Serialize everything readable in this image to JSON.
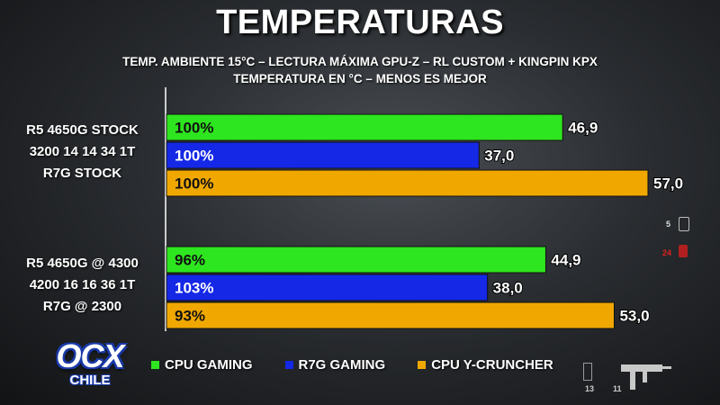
{
  "chart_data": {
    "type": "bar",
    "orientation": "horizontal",
    "title": "TEMPERATURAS",
    "subtitle": [
      "TEMP. AMBIENTE 15°C – LECTURA MÁXIMA GPU-Z – RL CUSTOM + KINGPIN KPX",
      "TEMPERATURA EN °C – MENOS ES MEJOR"
    ],
    "xlim": [
      0,
      60
    ],
    "grid": false,
    "legend_position": "bottom",
    "groups": [
      {
        "label_lines": [
          "R5 4650G STOCK",
          "3200 14 14 34 1T",
          "R7G STOCK"
        ]
      },
      {
        "label_lines": [
          "R5 4650G @ 4300",
          "4200 16 16 36 1T",
          "R7G @ 2300"
        ]
      }
    ],
    "series": [
      {
        "name": "CPU GAMING",
        "color": "#2ee61f",
        "values": [
          46.9,
          44.9
        ],
        "value_labels": [
          "46,9",
          "44,9"
        ],
        "inner_labels": [
          "100%",
          "96%"
        ]
      },
      {
        "name": "R7G GAMING",
        "color": "#1428e6",
        "values": [
          37.0,
          38.0
        ],
        "value_labels": [
          "37,0",
          "38,0"
        ],
        "inner_labels": [
          "100%",
          "103%"
        ]
      },
      {
        "name": "CPU Y-CRUNCHER",
        "color": "#f0a800",
        "values": [
          57.0,
          53.0
        ],
        "value_labels": [
          "57,0",
          "53,0"
        ],
        "inner_labels": [
          "100%",
          "93%"
        ]
      }
    ]
  },
  "logo": {
    "main": "OCX",
    "sub": "CHILE"
  },
  "hud": {
    "ammo_a": "5",
    "ammo_b": "24",
    "clip": "13",
    "reserve": "11"
  }
}
